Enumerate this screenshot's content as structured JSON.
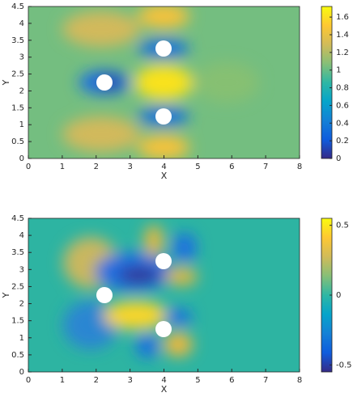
{
  "chart_data": [
    {
      "type": "heatmap",
      "xlabel": "X",
      "ylabel": "Y",
      "xlim": [
        0,
        8
      ],
      "ylim": [
        0,
        4.5
      ],
      "xticks": [
        0,
        1,
        2,
        3,
        4,
        5,
        6,
        7,
        8
      ],
      "yticks": [
        0,
        0.5,
        1,
        1.5,
        2,
        2.5,
        3,
        3.5,
        4,
        4.5
      ],
      "clim": [
        0,
        1.72
      ],
      "cticks": [
        0,
        0.2,
        0.4,
        0.6,
        0.8,
        1,
        1.2,
        1.4,
        1.6
      ],
      "colormap": [
        "#352a87",
        "#0f5cdd",
        "#1481d6",
        "#06a4ca",
        "#2eb7a4",
        "#87bf77",
        "#d1bb59",
        "#fec832",
        "#f9fb0e"
      ]
    },
    {
      "type": "heatmap",
      "xlabel": "X",
      "ylabel": "Y",
      "xlim": [
        0,
        8
      ],
      "ylim": [
        0,
        4.5
      ],
      "xticks": [
        0,
        1,
        2,
        3,
        4,
        5,
        6,
        7,
        8
      ],
      "yticks": [
        0,
        0.5,
        1,
        1.5,
        2,
        2.5,
        3,
        3.5,
        4,
        4.5
      ],
      "clim": [
        -0.55,
        0.55
      ],
      "cticks": [
        -0.5,
        0,
        0.5
      ],
      "colormap": [
        "#352a87",
        "#0f5cdd",
        "#1481d6",
        "#06a4ca",
        "#2eb7a4",
        "#87bf77",
        "#d1bb59",
        "#fec832",
        "#f9fb0e"
      ]
    }
  ]
}
